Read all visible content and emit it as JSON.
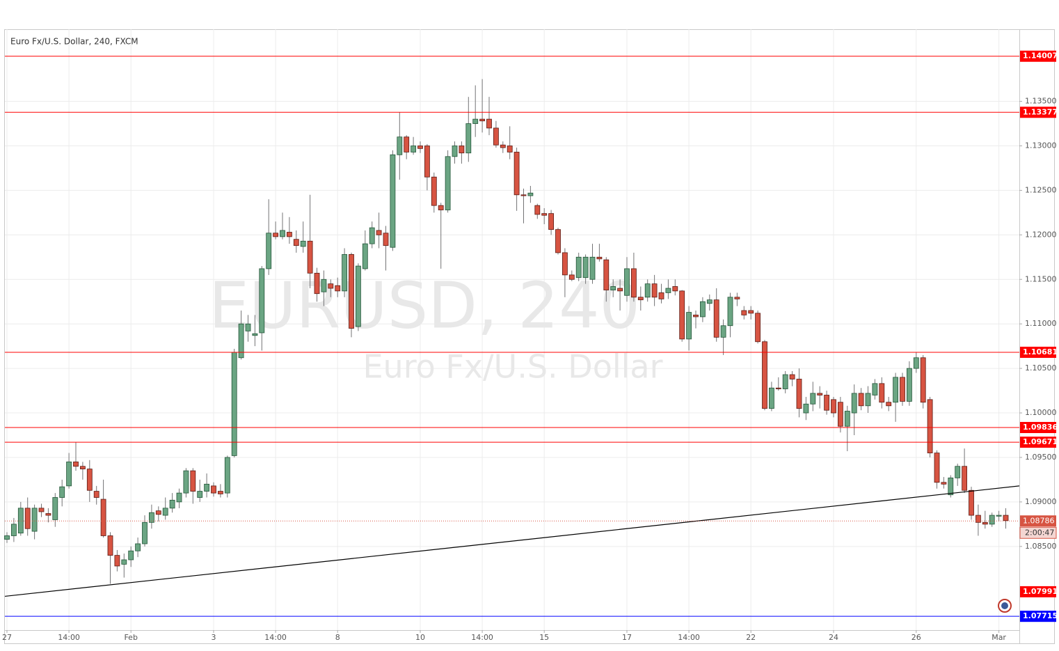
{
  "chart_data": {
    "type": "candlestick",
    "title": "Euro Fx/U.S. Dollar, 240, FXCM",
    "watermark": "EURUSD, 240",
    "watermark_subtitle": "Euro Fx/U.S. Dollar",
    "categories": [
      "27",
      null,
      null,
      null,
      null,
      null,
      null,
      null,
      null,
      "14:00",
      null,
      null,
      null,
      null,
      null,
      null,
      null,
      null,
      "Feb",
      null,
      null,
      null,
      null,
      null,
      null,
      null,
      null,
      null,
      null,
      null,
      "3",
      null,
      null,
      null,
      null,
      null,
      null,
      null,
      null,
      "14:00",
      null,
      null,
      null,
      null,
      null,
      null,
      null,
      null,
      "8",
      null,
      null,
      null,
      null,
      null,
      null,
      null,
      null,
      null,
      null,
      null,
      "10",
      null,
      null,
      null,
      null,
      null,
      null,
      null,
      null,
      "14:00",
      null,
      null,
      null,
      null,
      null,
      null,
      null,
      null,
      "15",
      null,
      null,
      null,
      null,
      null,
      null,
      null,
      null,
      null,
      null,
      null,
      "17",
      null,
      null,
      null,
      null,
      null,
      null,
      null,
      null,
      "14:00",
      null,
      null,
      null,
      null,
      null,
      null,
      null,
      null,
      "22",
      null,
      null,
      null,
      null,
      null,
      null,
      null,
      null,
      null,
      null,
      null,
      "24",
      null,
      null,
      null,
      null,
      null,
      null,
      null,
      null,
      null,
      null,
      null,
      "26",
      null,
      null,
      null,
      null,
      null,
      null,
      null,
      null,
      null,
      null,
      null,
      "Mar",
      null
    ],
    "open": [
      1.0858,
      1.0862,
      1.0865,
      1.0893,
      1.0867,
      1.0893,
      1.0887,
      1.088,
      1.0905,
      1.0918,
      1.0945,
      1.094,
      1.0937,
      1.0912,
      1.0903,
      1.0862,
      1.084,
      1.083,
      1.0835,
      1.0845,
      1.0853,
      1.0877,
      1.089,
      1.0885,
      1.0893,
      1.09,
      1.091,
      1.0935,
      1.0905,
      1.0912,
      1.0918,
      1.0912,
      1.091,
      1.0952,
      1.1062,
      1.1092,
      1.1087,
      1.109,
      1.1162,
      1.1202,
      1.1198,
      1.1203,
      1.1195,
      1.1187,
      1.1193,
      1.1157,
      1.1136,
      1.1145,
      1.1143,
      1.1137,
      1.1178,
      1.1097,
      1.1162,
      1.119,
      1.1205,
      1.1202,
      1.1186,
      1.129,
      1.131,
      1.1293,
      1.13,
      1.13,
      1.1265,
      1.1233,
      1.1228,
      1.1288,
      1.13,
      1.1292,
      1.1325,
      1.133,
      1.133,
      1.132,
      1.1301,
      1.13,
      1.1293,
      1.1245,
      1.1244,
      1.1233,
      1.1224,
      1.1224,
      1.1206,
      1.118,
      1.1155,
      1.1152,
      1.1152,
      1.115,
      1.1175,
      1.1172,
      1.1138,
      1.114,
      1.1132,
      1.1162,
      1.113,
      1.113,
      1.1145,
      1.1135,
      1.1135,
      1.1142,
      1.1137,
      1.1083,
      1.111,
      1.1108,
      1.1123,
      1.1127,
      1.1085,
      1.1098,
      1.113,
      1.1115,
      1.1115,
      1.1112,
      1.108,
      1.1005,
      1.1028,
      1.1027,
      1.1043,
      1.1038,
      1.1,
      1.101,
      1.1022,
      1.102,
      1.1015,
      1.1012,
      1.0985,
      1.1,
      1.1022,
      1.1008,
      1.102,
      1.1033,
      1.1012,
      1.1012,
      1.104,
      1.1013,
      1.105,
      1.1062,
      1.1015,
      1.0955,
      1.0922,
      1.0908,
      1.0927,
      1.094,
      1.0913,
      1.0885,
      1.0877,
      1.0875,
      1.0884,
      1.0885
    ],
    "high": [
      1.0866,
      1.0882,
      1.09,
      1.0905,
      1.0897,
      1.0898,
      1.0893,
      1.091,
      1.0925,
      1.0955,
      1.0967,
      1.0945,
      1.0947,
      1.0918,
      1.0925,
      1.0866,
      1.0846,
      1.0842,
      1.085,
      1.086,
      1.0885,
      1.0897,
      1.0895,
      1.0905,
      1.091,
      1.0915,
      1.0938,
      1.0938,
      1.0925,
      1.0932,
      1.0922,
      1.092,
      1.0952,
      1.1072,
      1.1115,
      1.111,
      1.111,
      1.1165,
      1.124,
      1.1215,
      1.1225,
      1.122,
      1.1205,
      1.1215,
      1.1245,
      1.1163,
      1.116,
      1.115,
      1.1152,
      1.1185,
      1.118,
      1.1168,
      1.1205,
      1.1215,
      1.1225,
      1.121,
      1.1295,
      1.1338,
      1.1312,
      1.131,
      1.1305,
      1.1302,
      1.127,
      1.1236,
      1.1295,
      1.1305,
      1.1305,
      1.1355,
      1.1368,
      1.1375,
      1.1355,
      1.1328,
      1.1305,
      1.1322,
      1.1298,
      1.1252,
      1.1255,
      1.1235,
      1.123,
      1.1228,
      1.1208,
      1.1185,
      1.116,
      1.118,
      1.1178,
      1.119,
      1.119,
      1.1175,
      1.115,
      1.115,
      1.1175,
      1.118,
      1.1142,
      1.115,
      1.1155,
      1.1145,
      1.115,
      1.115,
      1.1138,
      1.112,
      1.1115,
      1.113,
      1.1133,
      1.114,
      1.1105,
      1.1135,
      1.1135,
      1.112,
      1.112,
      1.1115,
      1.1082,
      1.1035,
      1.104,
      1.1047,
      1.1047,
      1.105,
      1.1018,
      1.1035,
      1.103,
      1.1025,
      1.1018,
      1.1018,
      1.1008,
      1.1032,
      1.1028,
      1.103,
      1.1038,
      1.104,
      1.1018,
      1.1045,
      1.1045,
      1.1058,
      1.1068,
      1.1065,
      1.1018,
      1.0958,
      1.0928,
      1.093,
      1.0943,
      1.096,
      1.0917,
      1.0897,
      1.089,
      1.0888,
      1.089,
      1.0893
    ],
    "low": [
      1.0854,
      1.0855,
      1.0862,
      1.0862,
      1.0858,
      1.0883,
      1.0877,
      1.0872,
      1.0895,
      1.0915,
      1.0935,
      1.0925,
      1.09,
      1.0897,
      1.086,
      1.0808,
      1.0822,
      1.0815,
      1.0827,
      1.0838,
      1.085,
      1.087,
      1.0878,
      1.088,
      1.0888,
      1.0893,
      1.0905,
      1.0898,
      1.09,
      1.0905,
      1.0906,
      1.0905,
      1.0905,
      1.095,
      1.106,
      1.108,
      1.1075,
      1.107,
      1.1155,
      1.1195,
      1.1195,
      1.119,
      1.118,
      1.118,
      1.114,
      1.1125,
      1.112,
      1.113,
      1.113,
      1.113,
      1.1085,
      1.1092,
      1.116,
      1.1185,
      1.1185,
      1.116,
      1.1182,
      1.1262,
      1.1285,
      1.129,
      1.1292,
      1.125,
      1.1225,
      1.1162,
      1.1225,
      1.128,
      1.128,
      1.1282,
      1.131,
      1.1315,
      1.1312,
      1.1298,
      1.1292,
      1.1285,
      1.1227,
      1.1213,
      1.1236,
      1.1218,
      1.1212,
      1.12,
      1.1178,
      1.113,
      1.1148,
      1.1148,
      1.1145,
      1.1145,
      1.117,
      1.1125,
      1.113,
      1.1115,
      1.1125,
      1.1125,
      1.1115,
      1.1125,
      1.112,
      1.1123,
      1.1128,
      1.1132,
      1.108,
      1.107,
      1.1095,
      1.1102,
      1.1115,
      1.108,
      1.1065,
      1.1085,
      1.112,
      1.1105,
      1.1105,
      1.1078,
      1.1003,
      1.1002,
      1.1025,
      1.1022,
      1.103,
      1.0995,
      1.0992,
      1.1002,
      1.1005,
      1.0998,
      1.0995,
      1.0978,
      1.0957,
      1.0975,
      1.1003,
      1.1,
      1.1015,
      1.1005,
      1.1002,
      1.099,
      1.1008,
      1.1008,
      1.1045,
      1.1005,
      1.095,
      1.0915,
      1.0915,
      1.0905,
      1.0918,
      1.091,
      1.088,
      1.0862,
      1.087,
      1.0872,
      1.0878,
      1.087
    ],
    "close": [
      1.0862,
      1.0875,
      1.0893,
      1.087,
      1.0893,
      1.0889,
      1.0885,
      1.0905,
      1.0917,
      1.0945,
      1.094,
      1.0937,
      1.0913,
      1.0905,
      1.0862,
      1.084,
      1.0828,
      1.0835,
      1.0845,
      1.0853,
      1.0877,
      1.0888,
      1.0886,
      1.0893,
      1.0902,
      1.091,
      1.0935,
      1.0912,
      1.0912,
      1.092,
      1.091,
      1.0909,
      1.095,
      1.1068,
      1.11,
      1.11,
      1.1089,
      1.1162,
      1.1202,
      1.1198,
      1.1205,
      1.1198,
      1.1188,
      1.1193,
      1.1157,
      1.1134,
      1.115,
      1.114,
      1.1137,
      1.1178,
      1.1095,
      1.1165,
      1.119,
      1.1208,
      1.12,
      1.1188,
      1.129,
      1.131,
      1.1293,
      1.13,
      1.1297,
      1.1265,
      1.1233,
      1.1228,
      1.1288,
      1.13,
      1.1292,
      1.1325,
      1.133,
      1.1328,
      1.132,
      1.1301,
      1.1298,
      1.1293,
      1.1245,
      1.1244,
      1.1247,
      1.1223,
      1.1222,
      1.1206,
      1.118,
      1.1155,
      1.115,
      1.1175,
      1.1175,
      1.1175,
      1.1173,
      1.1138,
      1.1142,
      1.1137,
      1.1162,
      1.113,
      1.1127,
      1.1145,
      1.113,
      1.1128,
      1.114,
      1.1137,
      1.1083,
      1.1113,
      1.1108,
      1.1125,
      1.1127,
      1.1085,
      1.1098,
      1.113,
      1.1128,
      1.111,
      1.1112,
      1.108,
      1.1005,
      1.1028,
      1.1027,
      1.1043,
      1.1038,
      1.1005,
      1.101,
      1.1022,
      1.102,
      1.1003,
      1.1,
      1.0985,
      1.1002,
      1.1022,
      1.1008,
      1.1022,
      1.1033,
      1.1012,
      1.1008,
      1.104,
      1.1013,
      1.105,
      1.1062,
      1.1012,
      1.0955,
      1.0922,
      1.092,
      1.0927,
      1.094,
      1.0913,
      1.0885,
      1.0877,
      1.0875,
      1.0885,
      1.0885,
      1.0879
    ],
    "up_color": "#6ba583",
    "down_color": "#d75442",
    "ylim": [
      1.0756,
      1.1431
    ],
    "yticks": [
      {
        "value": 1.085,
        "label": "1.08500"
      },
      {
        "value": 1.09,
        "label": "1.09000"
      },
      {
        "value": 1.095,
        "label": "1.09500"
      },
      {
        "value": 1.1,
        "label": "1.10000"
      },
      {
        "value": 1.105,
        "label": "1.10500"
      },
      {
        "value": 1.11,
        "label": "1.11000"
      },
      {
        "value": 1.115,
        "label": "1.11500"
      },
      {
        "value": 1.12,
        "label": "1.12000"
      },
      {
        "value": 1.125,
        "label": "1.12500"
      },
      {
        "value": 1.13,
        "label": "1.13000"
      },
      {
        "value": 1.135,
        "label": "1.13500"
      }
    ],
    "grid": true,
    "levels": [
      {
        "value": 1.14007,
        "color": "#ff0000"
      },
      {
        "value": 1.13377,
        "color": "#ff0000"
      },
      {
        "value": 1.10681,
        "color": "#ff0000"
      },
      {
        "value": 1.09836,
        "color": "#ff0000"
      },
      {
        "value": 1.09671,
        "color": "#ff0000"
      },
      {
        "value": 1.07715,
        "color": "#0000ff"
      }
    ],
    "axis_markers": [
      {
        "value": 1.07991,
        "color": "#ff0000"
      }
    ],
    "trendline": {
      "x": [
        -0.3,
        147
      ],
      "y": [
        1.0794,
        1.0918
      ],
      "color": "#000000"
    },
    "last_price": 1.08786,
    "countdown": "2:00:47"
  }
}
